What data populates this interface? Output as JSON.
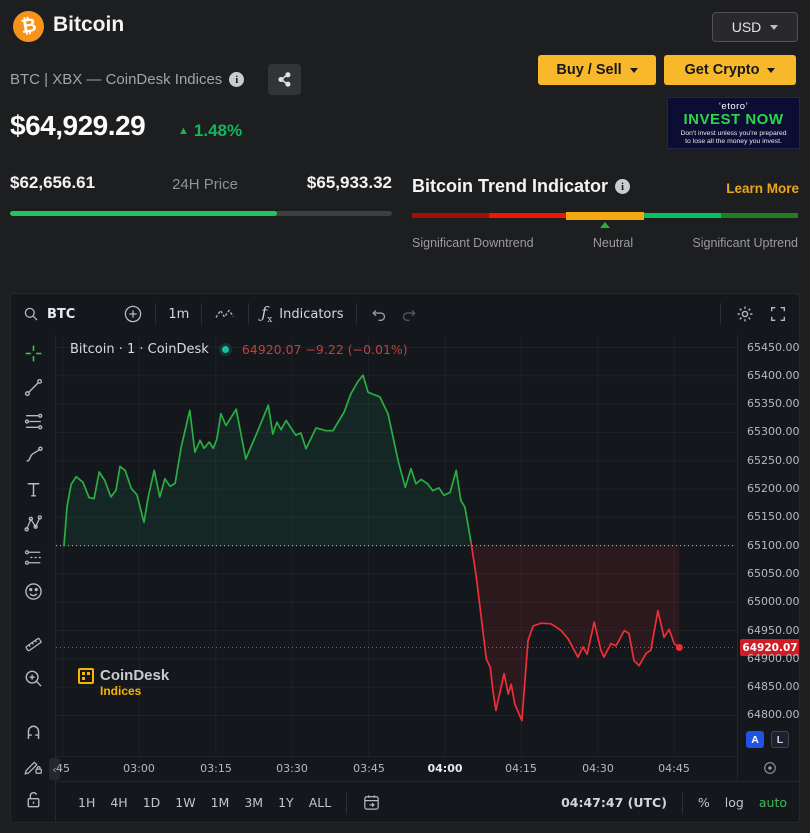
{
  "header": {
    "app_title": "Bitcoin",
    "currency": "USD",
    "subtitle": "BTC | XBX — CoinDesk Indices",
    "buy_sell": "Buy / Sell",
    "get_crypto": "Get Crypto"
  },
  "ad": {
    "brand": "‘etoro’",
    "headline": "INVEST NOW",
    "disclaimer_line1": "Don't invest unless you're prepared",
    "disclaimer_line2": "to lose all the money you invest."
  },
  "price": {
    "current": "$64,929.29",
    "change_pct": "1.48%",
    "low": "$62,656.61",
    "range_label": "24H Price",
    "high": "$65,933.32",
    "range_fill_pct": 70
  },
  "trend": {
    "title": "Bitcoin Trend Indicator",
    "learn_more": "Learn More",
    "segments": [
      "#a50f04",
      "#ef1700",
      "#f3a712",
      "#00c45f",
      "#237c1f"
    ],
    "marker_pct": 50,
    "labels": [
      "Significant Downtrend",
      "Neutral",
      "Significant Uptrend"
    ]
  },
  "chart": {
    "toolbar": {
      "symbol": "BTC",
      "interval": "1m",
      "indicators_label": "Indicators"
    },
    "legend": {
      "title": "Bitcoin · 1 · CoinDesk",
      "change_text": "64920.07 −9.22 (−0.01%)"
    },
    "watermark": {
      "line1": "CoinDesk",
      "line2": "Indices"
    },
    "price_badge": "64920.07",
    "axis_buttons": {
      "auto_label": "A",
      "lock_label": "L"
    },
    "left_tools": [
      "crosshair",
      "trend-line",
      "fib-retracement",
      "brush",
      "text",
      "xabcd-pattern",
      "long-position",
      "emoji",
      "divider",
      "ruler",
      "zoom-in",
      "divider",
      "magnet",
      "drawing-lock",
      "lock-all",
      "hide-drawings"
    ],
    "bottom": {
      "ranges": [
        "1H",
        "4H",
        "1D",
        "1W",
        "1M",
        "3M",
        "1Y",
        "ALL"
      ],
      "clock": "04:47:47 (UTC)",
      "percent": "%",
      "log": "log",
      "auto": "auto"
    },
    "chart_data": {
      "type": "line",
      "title": "Bitcoin · 1 · CoinDesk",
      "x_unit": "minutes since 02:45 UTC",
      "baseline": 65100,
      "last_price": 64920.07,
      "ylim": [
        64775,
        65475
      ],
      "price_ticks": [
        "65450.00",
        "65400.00",
        "65350.00",
        "65300.00",
        "65250.00",
        "65200.00",
        "65150.00",
        "65100.00",
        "65050.00",
        "65000.00",
        "64950.00",
        "64900.00",
        "64850.00",
        "64800.00"
      ],
      "time_ticks": [
        {
          "m": 0,
          "label": "45"
        },
        {
          "m": 15,
          "label": "03:00"
        },
        {
          "m": 30,
          "label": "03:15"
        },
        {
          "m": 45,
          "label": "03:30"
        },
        {
          "m": 60,
          "label": "03:45"
        },
        {
          "m": 75,
          "label": "04:00",
          "strong": true
        },
        {
          "m": 90,
          "label": "04:15"
        },
        {
          "m": 105,
          "label": "04:30"
        },
        {
          "m": 120,
          "label": "04:45"
        }
      ],
      "series": [
        {
          "name": "above-baseline",
          "color": "#2aae44",
          "points": [
            [
              0.2,
              65100
            ],
            [
              0.8,
              65170
            ],
            [
              1.6,
              65208
            ],
            [
              2.6,
              65222
            ],
            [
              3.9,
              65212
            ],
            [
              5.1,
              65185
            ],
            [
              6.1,
              65183
            ],
            [
              7.1,
              65230
            ],
            [
              8.2,
              65215
            ],
            [
              9.4,
              65186
            ],
            [
              10.4,
              65198
            ],
            [
              11.2,
              65240
            ],
            [
              12.2,
              65233
            ],
            [
              13.4,
              65201
            ],
            [
              14.5,
              65190
            ],
            [
              15.9,
              65141
            ],
            [
              16.7,
              65185
            ],
            [
              17.9,
              65233
            ],
            [
              19,
              65186
            ],
            [
              20,
              65218
            ],
            [
              21,
              65205
            ],
            [
              22,
              65210
            ],
            [
              23.2,
              65274
            ],
            [
              24.9,
              65339
            ],
            [
              25.9,
              65265
            ],
            [
              26.9,
              65286
            ],
            [
              27.7,
              65272
            ],
            [
              28.7,
              65283
            ],
            [
              29.5,
              65272
            ],
            [
              30.2,
              65288
            ],
            [
              31,
              65333
            ],
            [
              32,
              65312
            ],
            [
              34,
              65341
            ],
            [
              35.9,
              65253
            ],
            [
              38.1,
              65300
            ],
            [
              40.3,
              65348
            ],
            [
              41.2,
              65297
            ],
            [
              42,
              65318
            ],
            [
              42.8,
              65305
            ],
            [
              43.8,
              65321
            ],
            [
              45.7,
              65295
            ],
            [
              46.7,
              65299
            ],
            [
              47.7,
              65271
            ],
            [
              49.7,
              65308
            ],
            [
              51.6,
              65303
            ],
            [
              53,
              65303
            ],
            [
              55.2,
              65336
            ],
            [
              56.5,
              65368
            ],
            [
              57.9,
              65390
            ],
            [
              58.9,
              65401
            ],
            [
              59.9,
              65371
            ],
            [
              61.3,
              65366
            ],
            [
              62.2,
              65363
            ],
            [
              63.8,
              65333
            ],
            [
              65.8,
              65250
            ],
            [
              67.2,
              65203
            ],
            [
              68.3,
              65236
            ],
            [
              69.3,
              65209
            ],
            [
              70.3,
              65217
            ],
            [
              71.5,
              65210
            ],
            [
              72.6,
              65197
            ],
            [
              73.8,
              65202
            ],
            [
              74.8,
              65189
            ],
            [
              76,
              65194
            ],
            [
              77.2,
              65233
            ],
            [
              78.1,
              65180
            ],
            [
              78.9,
              65168
            ],
            [
              80.1,
              65106
            ]
          ]
        },
        {
          "name": "below-baseline",
          "color": "#ef2f36",
          "points": [
            [
              80.1,
              65106
            ],
            [
              81.1,
              65047
            ],
            [
              81.9,
              64990
            ],
            [
              82.7,
              64930
            ],
            [
              83.1,
              64900
            ],
            [
              83.9,
              64885
            ],
            [
              84.4,
              64844
            ],
            [
              85,
              64809
            ],
            [
              86.6,
              64874
            ],
            [
              87.4,
              64838
            ],
            [
              88,
              64855
            ],
            [
              88.7,
              64820
            ],
            [
              90.1,
              64791
            ],
            [
              91.3,
              64932
            ],
            [
              92.3,
              64958
            ],
            [
              93.9,
              64963
            ],
            [
              95.8,
              64962
            ],
            [
              97,
              64955
            ],
            [
              97.8,
              64950
            ],
            [
              99.2,
              64935
            ],
            [
              101.1,
              64903
            ],
            [
              102.1,
              64921
            ],
            [
              102.9,
              64908
            ],
            [
              104.3,
              64965
            ],
            [
              105.6,
              64915
            ],
            [
              106.2,
              64903
            ],
            [
              107.6,
              64927
            ],
            [
              108.6,
              64923
            ],
            [
              110.2,
              64950
            ],
            [
              111.1,
              64945
            ],
            [
              112.1,
              64897
            ],
            [
              113.1,
              64888
            ],
            [
              114.5,
              64910
            ],
            [
              115.4,
              64915
            ],
            [
              116.8,
              64985
            ],
            [
              118,
              64938
            ],
            [
              119,
              64952
            ],
            [
              120,
              64927
            ],
            [
              121,
              64920.07
            ]
          ]
        }
      ]
    }
  }
}
